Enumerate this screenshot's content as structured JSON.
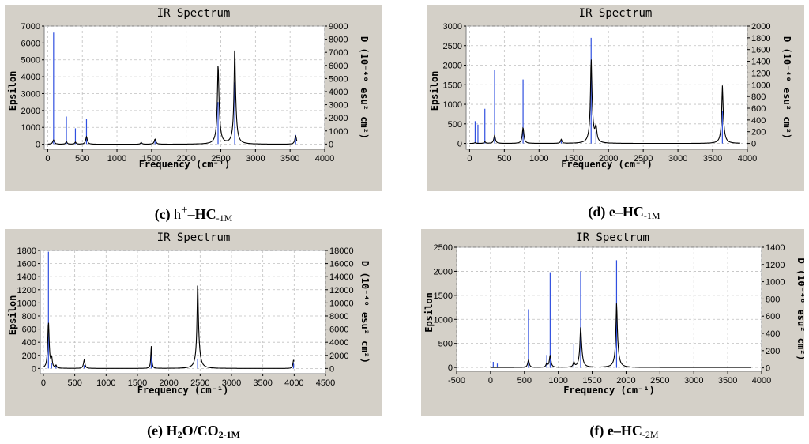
{
  "chart_data": [
    {
      "id": "c",
      "type": "line",
      "title": "IR Spectrum",
      "xlabel": "Frequency (cm⁻¹)",
      "ylabel": "Epsilon",
      "y2label": "D (10⁻⁴⁰ esu² cm²)",
      "xlim": [
        -50,
        4000
      ],
      "ylim": [
        -300,
        7000
      ],
      "y2lim": [
        -400,
        9000
      ],
      "xticks": [
        0,
        500,
        1000,
        1500,
        2000,
        2500,
        3000,
        3500,
        4000
      ],
      "yticks": [
        0,
        1000,
        2000,
        3000,
        4000,
        5000,
        6000,
        7000
      ],
      "y2ticks": [
        0,
        1000,
        2000,
        3000,
        4000,
        5000,
        6000,
        7000,
        8000,
        9000
      ],
      "x_end": 3600,
      "sticks": [
        [
          85,
          8500
        ],
        [
          270,
          2100
        ],
        [
          400,
          1200
        ],
        [
          560,
          1900
        ],
        [
          1350,
          150
        ],
        [
          1550,
          300
        ],
        [
          2460,
          3200
        ],
        [
          2700,
          4700
        ],
        [
          3580,
          700
        ]
      ],
      "peaks": [
        [
          85,
          250,
          15
        ],
        [
          270,
          150,
          12
        ],
        [
          400,
          120,
          12
        ],
        [
          560,
          450,
          14
        ],
        [
          1350,
          100,
          12
        ],
        [
          1550,
          300,
          14
        ],
        [
          2460,
          2900,
          10
        ],
        [
          2465,
          1900,
          25
        ],
        [
          2700,
          3800,
          10
        ],
        [
          2705,
          2000,
          25
        ],
        [
          3580,
          500,
          14
        ]
      ]
    },
    {
      "id": "d",
      "type": "line",
      "title": "IR Spectrum",
      "xlabel": "Frequency (cm⁻¹)",
      "ylabel": "Epsilon",
      "y2label": "D (10⁻⁴⁰ esu² cm²)",
      "xlim": [
        -50,
        4000
      ],
      "ylim": [
        -150,
        3000
      ],
      "y2lim": [
        -100,
        2000
      ],
      "xticks": [
        0,
        500,
        1000,
        1500,
        2000,
        2500,
        3000,
        3500,
        4000
      ],
      "yticks": [
        0,
        500,
        1000,
        1500,
        2000,
        2500,
        3000
      ],
      "y2ticks": [
        0,
        200,
        400,
        600,
        800,
        1000,
        1200,
        1400,
        1600,
        1800,
        2000
      ],
      "x_end": 3900,
      "sticks": [
        [
          80,
          380
        ],
        [
          120,
          320
        ],
        [
          220,
          590
        ],
        [
          360,
          1250
        ],
        [
          770,
          1090
        ],
        [
          1320,
          50
        ],
        [
          1750,
          1800
        ],
        [
          1820,
          200
        ],
        [
          3640,
          550
        ]
      ],
      "peaks": [
        [
          80,
          20,
          12
        ],
        [
          220,
          40,
          12
        ],
        [
          360,
          200,
          14
        ],
        [
          770,
          400,
          14
        ],
        [
          1320,
          100,
          12
        ],
        [
          1750,
          1300,
          9
        ],
        [
          1755,
          900,
          25
        ],
        [
          1820,
          350,
          15
        ],
        [
          3640,
          950,
          9
        ],
        [
          3645,
          550,
          25
        ]
      ]
    },
    {
      "id": "e",
      "type": "line",
      "title": "IR Spectrum",
      "xlabel": "Frequency (cm⁻¹)",
      "ylabel": "Epsilon",
      "y2label": "D (10⁻⁴⁰ esu² cm²)",
      "xlim": [
        -50,
        4500
      ],
      "ylim": [
        -80,
        1800
      ],
      "y2lim": [
        -800,
        18000
      ],
      "xticks": [
        0,
        500,
        1000,
        1500,
        2000,
        2500,
        3000,
        3500,
        4000,
        4500
      ],
      "yticks": [
        0,
        200,
        400,
        600,
        800,
        1000,
        1200,
        1400,
        1600,
        1800
      ],
      "y2ticks": [
        0,
        2000,
        4000,
        6000,
        8000,
        10000,
        12000,
        14000,
        16000,
        18000
      ],
      "x_end": 4000,
      "sticks": [
        [
          80,
          17800
        ],
        [
          130,
          800
        ],
        [
          200,
          500
        ],
        [
          650,
          500
        ],
        [
          1720,
          2900
        ],
        [
          2460,
          1500
        ],
        [
          3990,
          900
        ]
      ],
      "peaks": [
        [
          80,
          700,
          14
        ],
        [
          130,
          150,
          12
        ],
        [
          200,
          40,
          12
        ],
        [
          650,
          130,
          14
        ],
        [
          1720,
          340,
          9
        ],
        [
          2460,
          880,
          10
        ],
        [
          2465,
          450,
          30
        ],
        [
          3990,
          130,
          12
        ]
      ]
    },
    {
      "id": "f",
      "type": "line",
      "title": "IR Spectrum",
      "xlabel": "Frequency (cm⁻¹)",
      "ylabel": "Epsilon",
      "y2label": "D (10⁻⁴⁰ esu² cm²)",
      "xlim": [
        -500,
        4000
      ],
      "ylim": [
        -80,
        2500
      ],
      "y2lim": [
        -40,
        1400
      ],
      "xticks": [
        -500,
        0,
        500,
        1000,
        1500,
        2000,
        2500,
        3000,
        3500,
        4000
      ],
      "yticks": [
        0,
        500,
        1000,
        1500,
        2000,
        2500
      ],
      "y2ticks": [
        0,
        200,
        400,
        600,
        800,
        1000,
        1200,
        1400
      ],
      "x_start": 0,
      "x_end": 3850,
      "sticks": [
        [
          40,
          70
        ],
        [
          100,
          50
        ],
        [
          560,
          680
        ],
        [
          830,
          150
        ],
        [
          880,
          1110
        ],
        [
          1230,
          280
        ],
        [
          1330,
          1120
        ],
        [
          1860,
          1250
        ]
      ],
      "peaks": [
        [
          560,
          150,
          14
        ],
        [
          830,
          80,
          12
        ],
        [
          880,
          250,
          14
        ],
        [
          1230,
          100,
          12
        ],
        [
          1330,
          550,
          12
        ],
        [
          1335,
          300,
          25
        ],
        [
          1860,
          900,
          10
        ],
        [
          1865,
          450,
          28
        ]
      ]
    }
  ],
  "captions": {
    "c": {
      "label": "(c) ",
      "pre": "h",
      "sup": "+",
      "dash": "–",
      "main": "HC",
      "sub": "-1M"
    },
    "d": {
      "label": "(d) e–HC",
      "sub": "-1M"
    },
    "e": {
      "label": "(e) H",
      "s1": "2",
      "mid": "O/CO",
      "s2": "2-1M"
    },
    "f": {
      "label": "(f) e–HC",
      "sub": "-2M"
    }
  }
}
